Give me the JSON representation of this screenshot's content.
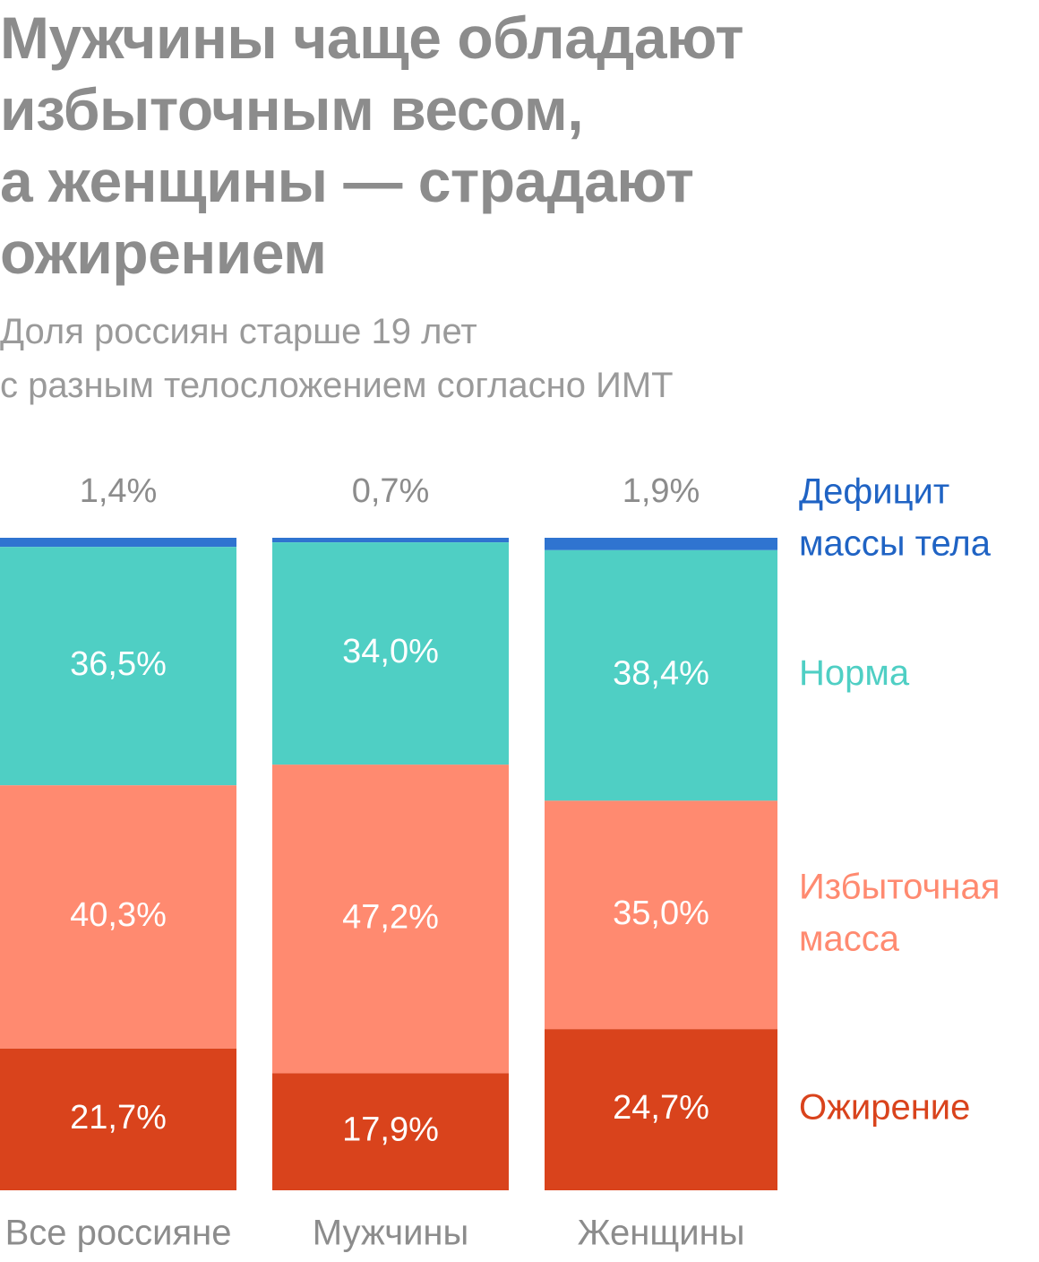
{
  "title": {
    "lines": [
      "Мужчины чаще обладают",
      "избыточным весом,",
      "а женщины — страдают",
      "ожирением"
    ]
  },
  "subtitle": {
    "lines": [
      "Доля россиян старше 19 лет",
      "с разным телосложением согласно ИМТ"
    ]
  },
  "chart_data": {
    "type": "bar",
    "stacked": true,
    "unit": "%",
    "categories": [
      "Все россияне",
      "Мужчины",
      "Женщины"
    ],
    "series": [
      {
        "name": "Дефицит массы тела",
        "legend_lines": [
          "Дефицит",
          "массы тела"
        ],
        "color": "#2f74d0",
        "legend_color": "#1f63c4",
        "values": [
          1.4,
          0.7,
          1.9
        ],
        "labels": [
          "1,4%",
          "0,7%",
          "1,9%"
        ]
      },
      {
        "name": "Норма",
        "legend_lines": [
          "Норма"
        ],
        "color": "#4fcfc4",
        "legend_color": "#4fcfc4",
        "values": [
          36.5,
          34.0,
          38.4
        ],
        "labels": [
          "36,5%",
          "34,0%",
          "38,4%"
        ]
      },
      {
        "name": "Избыточная масса",
        "legend_lines": [
          "Избыточная",
          "масса"
        ],
        "color": "#ff8a70",
        "legend_color": "#ff8a70",
        "values": [
          40.3,
          47.2,
          35.0
        ],
        "labels": [
          "40,3%",
          "47,2%",
          "35,0%"
        ]
      },
      {
        "name": "Ожирение",
        "legend_lines": [
          "Ожирение"
        ],
        "color": "#d9431c",
        "legend_color": "#d9431c",
        "values": [
          21.7,
          17.9,
          24.7
        ],
        "labels": [
          "21,7%",
          "17,9%",
          "24,7%"
        ]
      }
    ],
    "colors": {
      "bar_label": "#ffffff",
      "top_label": "#8c8c8c",
      "category_label": "#8c8c8c",
      "title": "#8c8c8c",
      "subtitle": "#9a9a9a"
    },
    "legend_position": "right",
    "grid": false
  }
}
